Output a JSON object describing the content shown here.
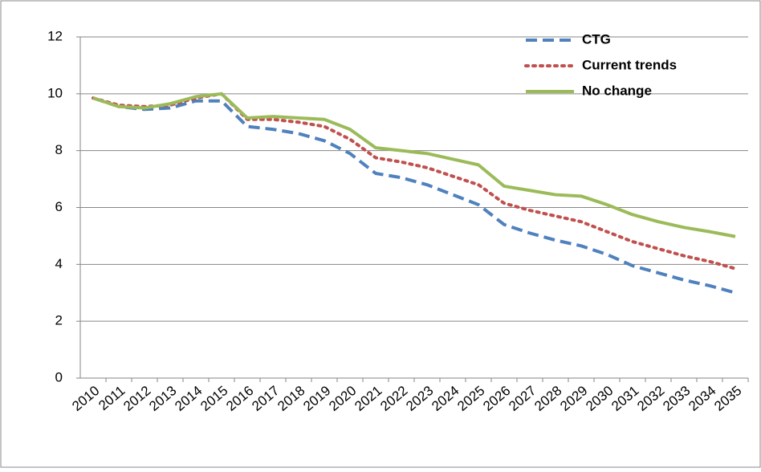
{
  "chart_data": {
    "type": "line",
    "categories": [
      "2010",
      "2011",
      "2012",
      "2013",
      "2014",
      "2015",
      "2016",
      "2017",
      "2018",
      "2019",
      "2020",
      "2021",
      "2022",
      "2023",
      "2024",
      "2025",
      "2026",
      "2027",
      "2028",
      "2029",
      "2030",
      "2031",
      "2032",
      "2033",
      "2034",
      "2035"
    ],
    "series": [
      {
        "name": "CTG",
        "color": "#4f81bd",
        "dash": "dashed",
        "values": [
          9.85,
          9.55,
          9.45,
          9.5,
          9.75,
          9.75,
          8.85,
          8.75,
          8.6,
          8.35,
          7.9,
          7.2,
          7.05,
          6.8,
          6.45,
          6.1,
          5.4,
          5.1,
          4.85,
          4.65,
          4.35,
          3.95,
          3.7,
          3.45,
          3.25,
          3.0
        ]
      },
      {
        "name": "Current trends",
        "color": "#c0504d",
        "dash": "dotted",
        "values": [
          9.85,
          9.6,
          9.55,
          9.6,
          9.85,
          10.0,
          9.1,
          9.1,
          9.0,
          8.85,
          8.4,
          7.75,
          7.6,
          7.4,
          7.1,
          6.8,
          6.15,
          5.9,
          5.7,
          5.5,
          5.15,
          4.8,
          4.55,
          4.3,
          4.1,
          3.85
        ]
      },
      {
        "name": "No change",
        "color": "#9bbb59",
        "dash": "solid",
        "values": [
          9.85,
          9.55,
          9.5,
          9.65,
          9.9,
          10.0,
          9.15,
          9.2,
          9.15,
          9.1,
          8.75,
          8.1,
          8.0,
          7.9,
          7.7,
          7.5,
          6.75,
          6.6,
          6.45,
          6.4,
          6.1,
          5.75,
          5.5,
          5.3,
          5.15,
          4.98
        ]
      }
    ],
    "ylim": [
      0,
      12
    ],
    "yticks": [
      0,
      2,
      4,
      6,
      8,
      10,
      12
    ],
    "grid": true,
    "legend": "upper right"
  }
}
